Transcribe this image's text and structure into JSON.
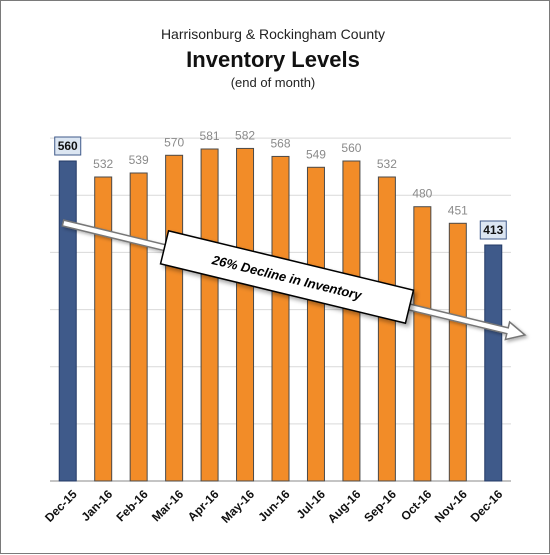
{
  "colors": {
    "highlight_bar": "#3f5a8a",
    "highlight_bar_edge": "#233a66",
    "normal_bar": "#f28c28",
    "normal_bar_edge": "#4a4a4a",
    "gridline": "#d9d9d9",
    "label_box_fill": "#dce6f2",
    "label_box_edge": "#3f5a8a"
  },
  "chart_data": {
    "type": "bar",
    "subtitle_top": "Harrisonburg & Rockingham County",
    "title": "Inventory Levels",
    "subtitle": "(end of month)",
    "categories": [
      "Dec-15",
      "Jan-16",
      "Feb-16",
      "Mar-16",
      "Apr-16",
      "May-16",
      "Jun-16",
      "Jul-16",
      "Aug-16",
      "Sep-16",
      "Oct-16",
      "Nov-16",
      "Dec-16"
    ],
    "values": [
      560,
      532,
      539,
      570,
      581,
      582,
      568,
      549,
      560,
      532,
      480,
      451,
      413
    ],
    "highlighted": [
      "Dec-15",
      "Dec-16"
    ],
    "ylim": [
      0,
      700
    ],
    "gridlines": [
      100,
      200,
      300,
      400,
      500,
      600
    ],
    "grid": true,
    "xlabel": "",
    "ylabel": "",
    "annotation": "26% Decline in Inventory"
  }
}
